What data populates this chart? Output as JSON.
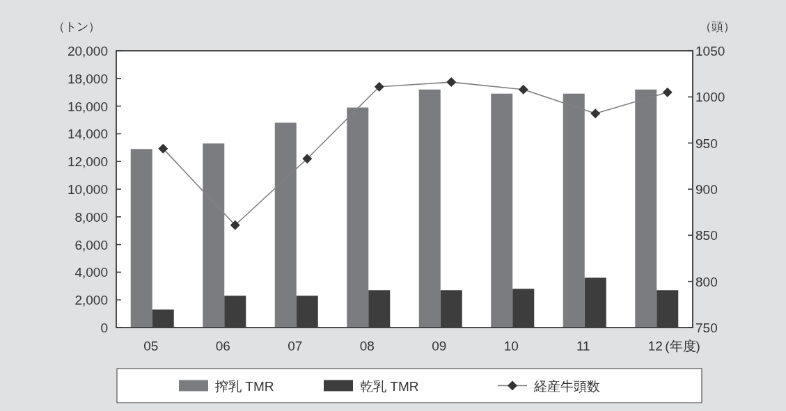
{
  "chart_data": {
    "type": "bar",
    "categories": [
      "05",
      "06",
      "07",
      "08",
      "09",
      "10",
      "11",
      "12"
    ],
    "xlabel": "(年度)",
    "ylabel": "（トン）",
    "y2label": "（頭）",
    "series": [
      {
        "name": "搾乳 TMR",
        "color": "#7b7c80",
        "values": [
          12900,
          13300,
          14800,
          15900,
          17200,
          16900,
          16900,
          17200
        ]
      },
      {
        "name": "乾乳 TMR",
        "color": "#3d3d3d",
        "values": [
          1300,
          2300,
          2300,
          2700,
          2700,
          2800,
          3600,
          2700
        ]
      },
      {
        "name": "経産牛頭数",
        "type": "line",
        "axis": "y2",
        "color": "#808080",
        "marker": "diamond",
        "values": [
          944,
          861,
          933,
          1011,
          1016,
          1008,
          982,
          1005
        ]
      }
    ],
    "ylim": [
      0,
      20000
    ],
    "yticks": [
      0,
      {
        "value": 2000,
        "label": "2,000"
      },
      {
        "value": 4000,
        "label": "4,000"
      },
      {
        "value": 6000,
        "label": "6,000"
      },
      {
        "value": 8000,
        "label": "8,000"
      },
      {
        "value": 10000,
        "label": "10,000"
      },
      {
        "value": 12000,
        "label": "12,000"
      },
      {
        "value": 14000,
        "label": "14,000"
      },
      {
        "value": 16000,
        "label": "16,000"
      },
      {
        "value": 18000,
        "label": "18,000"
      },
      {
        "value": 20000,
        "label": "20,000"
      }
    ],
    "y2lim": [
      750,
      1050
    ],
    "y2ticks": [
      750,
      800,
      850,
      900,
      950,
      1000,
      1050
    ],
    "legend": "bottom",
    "grid": false
  }
}
